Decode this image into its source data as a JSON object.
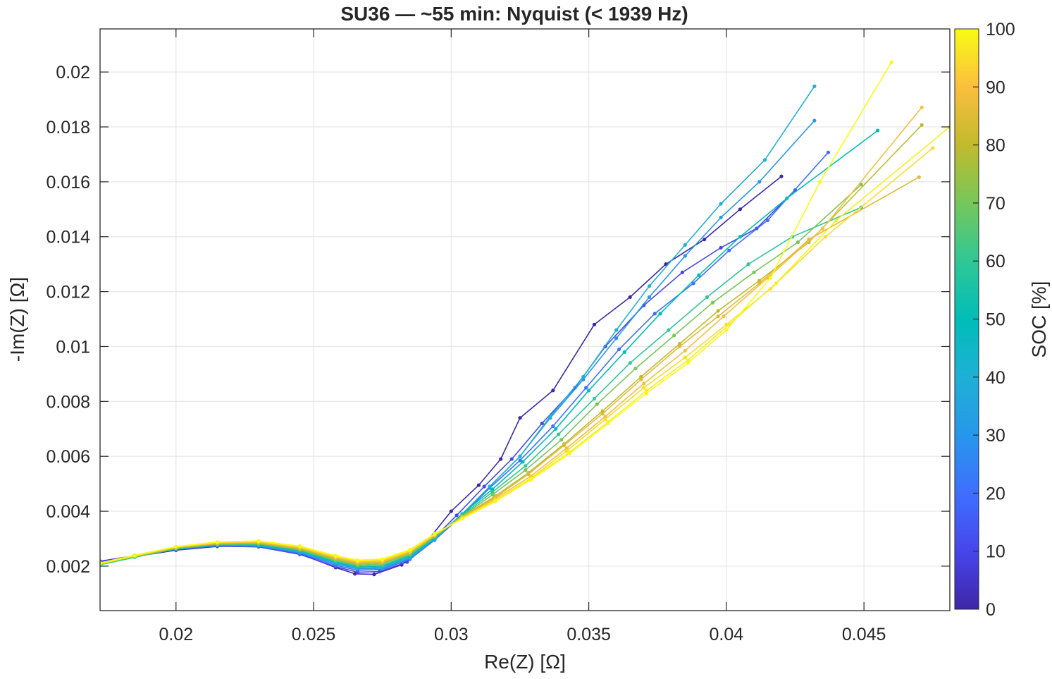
{
  "chart_data": {
    "type": "line",
    "title": "SU36 — ~55 min: Nyquist (< 1939 Hz)",
    "xlabel": "Re(Z) [Ω]",
    "ylabel": "-Im(Z) [Ω]",
    "xlim": [
      0.01724,
      0.04812
    ],
    "ylim": [
      0.00038,
      0.02157
    ],
    "xticks": [
      0.02,
      0.025,
      0.03,
      0.035,
      0.04,
      0.045
    ],
    "xtick_labels": [
      "0.02",
      "0.025",
      "0.03",
      "0.035",
      "0.04",
      "0.045"
    ],
    "yticks": [
      0.002,
      0.004,
      0.006,
      0.008,
      0.01,
      0.012,
      0.014,
      0.016,
      0.018,
      0.02
    ],
    "ytick_labels": [
      "0.002",
      "0.004",
      "0.006",
      "0.008",
      "0.01",
      "0.012",
      "0.014",
      "0.016",
      "0.018",
      "0.02"
    ],
    "grid": true,
    "marker": "dot",
    "colorbar": {
      "label": "SOC [%]",
      "min": 0,
      "max": 100,
      "ticks": [
        0,
        10,
        20,
        30,
        40,
        50,
        60,
        70,
        80,
        90,
        100
      ],
      "tick_labels": [
        "0",
        "10",
        "20",
        "30",
        "40",
        "50",
        "60",
        "70",
        "80",
        "90",
        "100"
      ],
      "colormap": "parula",
      "colormap_stops": [
        "#3e26a8",
        "#4746eb",
        "#3e6fff",
        "#2797eb",
        "#1fb0d5",
        "#00bdb8",
        "#30c796",
        "#76c75a",
        "#c2ba2d",
        "#fbbe3e",
        "#f9fb15"
      ]
    },
    "series": [
      {
        "name": "SOC 0",
        "soc": 0,
        "x": [
          0.01724,
          0.0185,
          0.02,
          0.0215,
          0.023,
          0.0245,
          0.0258,
          0.0265,
          0.0272,
          0.0282,
          0.029,
          0.03,
          0.031,
          0.0318,
          0.0325,
          0.0337,
          0.0352,
          0.0365,
          0.0378,
          0.0392,
          0.0405,
          0.042
        ],
        "y": [
          0.00215,
          0.00235,
          0.00258,
          0.00272,
          0.00272,
          0.00245,
          0.00195,
          0.00172,
          0.0017,
          0.00205,
          0.00275,
          0.004,
          0.00495,
          0.0059,
          0.0074,
          0.0084,
          0.0108,
          0.0118,
          0.013,
          0.0139,
          0.015,
          0.0162
        ]
      },
      {
        "name": "SOC 10",
        "soc": 10,
        "x": [
          0.01724,
          0.0185,
          0.02,
          0.0215,
          0.023,
          0.0245,
          0.0258,
          0.0266,
          0.0274,
          0.0284,
          0.0292,
          0.0302,
          0.0312,
          0.0322,
          0.0333,
          0.0345,
          0.0356,
          0.037,
          0.0384,
          0.0398,
          0.0411,
          0.0425
        ],
        "y": [
          0.00218,
          0.00238,
          0.0026,
          0.00273,
          0.0027,
          0.00243,
          0.00198,
          0.00178,
          0.0018,
          0.00215,
          0.00285,
          0.00385,
          0.0049,
          0.0059,
          0.0072,
          0.0085,
          0.01,
          0.0115,
          0.0127,
          0.0136,
          0.0143,
          0.0157
        ]
      },
      {
        "name": "SOC 20",
        "soc": 20,
        "x": [
          0.01724,
          0.0185,
          0.02,
          0.0215,
          0.023,
          0.0245,
          0.0258,
          0.0266,
          0.0275,
          0.0285,
          0.0294,
          0.0304,
          0.0314,
          0.0325,
          0.0337,
          0.0349,
          0.0361,
          0.0374,
          0.0388,
          0.0401,
          0.0415,
          0.0437
        ],
        "y": [
          0.00212,
          0.00236,
          0.00262,
          0.00275,
          0.00272,
          0.00247,
          0.00203,
          0.00185,
          0.00188,
          0.00225,
          0.00295,
          0.00385,
          0.00485,
          0.00585,
          0.0071,
          0.0085,
          0.0099,
          0.0112,
          0.0123,
          0.0135,
          0.0146,
          0.01707
        ]
      },
      {
        "name": "SOC 30",
        "soc": 30,
        "x": [
          0.01724,
          0.0185,
          0.02,
          0.0215,
          0.023,
          0.0245,
          0.0258,
          0.0266,
          0.0275,
          0.0285,
          0.0294,
          0.0304,
          0.0314,
          0.0325,
          0.0336,
          0.0348,
          0.036,
          0.0372,
          0.0385,
          0.0398,
          0.0412,
          0.0432
        ],
        "y": [
          0.0021,
          0.00234,
          0.00262,
          0.00276,
          0.00274,
          0.0025,
          0.00208,
          0.0019,
          0.00192,
          0.00228,
          0.00298,
          0.00388,
          0.0049,
          0.006,
          0.0074,
          0.0088,
          0.0103,
          0.0118,
          0.0133,
          0.0147,
          0.016,
          0.01823
        ]
      },
      {
        "name": "SOC 40",
        "soc": 40,
        "x": [
          0.01724,
          0.0185,
          0.02,
          0.0215,
          0.023,
          0.0245,
          0.0258,
          0.0266,
          0.0275,
          0.0285,
          0.0294,
          0.0304,
          0.0314,
          0.0325,
          0.0336,
          0.0348,
          0.036,
          0.0372,
          0.0385,
          0.0398,
          0.0414,
          0.0432
        ],
        "y": [
          0.0021,
          0.00235,
          0.00263,
          0.00277,
          0.00276,
          0.00253,
          0.00212,
          0.00194,
          0.00196,
          0.00232,
          0.003,
          0.0039,
          0.0049,
          0.006,
          0.00745,
          0.0089,
          0.0106,
          0.0122,
          0.0137,
          0.0152,
          0.0168,
          0.01948
        ]
      },
      {
        "name": "SOC 50",
        "soc": 50,
        "x": [
          0.01724,
          0.0185,
          0.02,
          0.0215,
          0.023,
          0.0245,
          0.0258,
          0.0266,
          0.0275,
          0.0285,
          0.0294,
          0.0304,
          0.0315,
          0.0326,
          0.0338,
          0.035,
          0.0363,
          0.0376,
          0.039,
          0.0405,
          0.0422,
          0.0455
        ],
        "y": [
          0.00208,
          0.00233,
          0.00263,
          0.00278,
          0.00278,
          0.00256,
          0.00215,
          0.00198,
          0.002,
          0.00236,
          0.00302,
          0.0039,
          0.0048,
          0.0058,
          0.007,
          0.0084,
          0.0098,
          0.0112,
          0.0126,
          0.014,
          0.0154,
          0.01787
        ]
      },
      {
        "name": "SOC 60",
        "soc": 60,
        "x": [
          0.01724,
          0.0185,
          0.02,
          0.0215,
          0.023,
          0.0245,
          0.0258,
          0.0266,
          0.0275,
          0.0285,
          0.0294,
          0.0304,
          0.0315,
          0.0327,
          0.0339,
          0.0352,
          0.0365,
          0.0379,
          0.0393,
          0.0408,
          0.0424,
          0.0449
        ],
        "y": [
          0.00205,
          0.00232,
          0.00264,
          0.00279,
          0.0028,
          0.00258,
          0.00218,
          0.002,
          0.00203,
          0.0024,
          0.00305,
          0.00385,
          0.0047,
          0.00565,
          0.0068,
          0.0081,
          0.0094,
          0.0106,
          0.0118,
          0.013,
          0.014,
          0.01507
        ]
      },
      {
        "name": "SOC 70",
        "soc": 70,
        "x": [
          0.01724,
          0.0185,
          0.02,
          0.0215,
          0.023,
          0.0245,
          0.0258,
          0.0266,
          0.0275,
          0.0285,
          0.0294,
          0.0304,
          0.0315,
          0.0327,
          0.034,
          0.0353,
          0.0367,
          0.0381,
          0.0395,
          0.041,
          0.0426,
          0.0449
        ],
        "y": [
          0.00208,
          0.00234,
          0.00265,
          0.0028,
          0.00282,
          0.0026,
          0.00222,
          0.00204,
          0.00208,
          0.00244,
          0.00308,
          0.00382,
          0.0046,
          0.0055,
          0.0066,
          0.0079,
          0.0092,
          0.0104,
          0.0116,
          0.0127,
          0.0138,
          0.0159
        ]
      },
      {
        "name": "SOC 80",
        "soc": 80,
        "x": [
          0.01724,
          0.0185,
          0.02,
          0.0215,
          0.023,
          0.0245,
          0.0258,
          0.0266,
          0.0275,
          0.0285,
          0.0294,
          0.0304,
          0.0316,
          0.0328,
          0.0341,
          0.0355,
          0.0369,
          0.0383,
          0.0397,
          0.0412,
          0.043,
          0.0471
        ],
        "y": [
          0.0021,
          0.00236,
          0.00267,
          0.00282,
          0.00284,
          0.00263,
          0.00226,
          0.00208,
          0.00212,
          0.00248,
          0.0031,
          0.0038,
          0.00455,
          0.0054,
          0.00645,
          0.00765,
          0.0089,
          0.0101,
          0.0113,
          0.0124,
          0.0138,
          0.01807
        ]
      },
      {
        "name": "SOC 85",
        "soc": 85,
        "x": [
          0.01724,
          0.0185,
          0.02,
          0.0215,
          0.023,
          0.0245,
          0.0258,
          0.0266,
          0.0275,
          0.0285,
          0.0294,
          0.0304,
          0.0316,
          0.0328,
          0.0341,
          0.0355,
          0.0369,
          0.0383,
          0.0397,
          0.0412,
          0.043,
          0.047
        ],
        "y": [
          0.00212,
          0.00238,
          0.00268,
          0.00284,
          0.00286,
          0.00265,
          0.00229,
          0.00211,
          0.00215,
          0.0025,
          0.00312,
          0.00378,
          0.0045,
          0.00535,
          0.0064,
          0.00755,
          0.0088,
          0.01,
          0.0111,
          0.0123,
          0.0139,
          0.01617
        ]
      },
      {
        "name": "SOC 90",
        "soc": 90,
        "x": [
          0.01724,
          0.0185,
          0.02,
          0.0215,
          0.023,
          0.0245,
          0.0258,
          0.0266,
          0.0275,
          0.0285,
          0.0294,
          0.0304,
          0.0316,
          0.0329,
          0.0342,
          0.0356,
          0.037,
          0.0385,
          0.0399,
          0.0415,
          0.0435,
          0.0471
        ],
        "y": [
          0.0021,
          0.00238,
          0.00269,
          0.00285,
          0.00288,
          0.00268,
          0.00232,
          0.00215,
          0.00218,
          0.00253,
          0.00314,
          0.00376,
          0.00445,
          0.00528,
          0.0063,
          0.00745,
          0.00865,
          0.00985,
          0.0111,
          0.0125,
          0.0143,
          0.01871
        ]
      },
      {
        "name": "SOC 95",
        "soc": 95,
        "x": [
          0.01724,
          0.0185,
          0.02,
          0.0215,
          0.023,
          0.0245,
          0.0258,
          0.0266,
          0.0275,
          0.0285,
          0.0294,
          0.0304,
          0.0316,
          0.0329,
          0.0342,
          0.0356,
          0.037,
          0.0385,
          0.04,
          0.0416,
          0.0436,
          0.0475
        ],
        "y": [
          0.00212,
          0.0024,
          0.0027,
          0.00287,
          0.0029,
          0.0027,
          0.00235,
          0.00218,
          0.00222,
          0.00256,
          0.00316,
          0.00375,
          0.0044,
          0.0052,
          0.0062,
          0.00735,
          0.0085,
          0.0096,
          0.0108,
          0.0121,
          0.014,
          0.01723
        ]
      },
      {
        "name": "SOC 100",
        "soc": 100,
        "x": [
          0.01724,
          0.0185,
          0.02,
          0.0215,
          0.023,
          0.0245,
          0.0258,
          0.0266,
          0.0275,
          0.0285,
          0.0294,
          0.0304,
          0.0316,
          0.0329,
          0.0343,
          0.0357,
          0.0371,
          0.0386,
          0.04,
          0.0416,
          0.0434,
          0.046
        ],
        "y": [
          0.00208,
          0.00238,
          0.00271,
          0.00288,
          0.00292,
          0.00273,
          0.00238,
          0.00222,
          0.00226,
          0.0026,
          0.00318,
          0.00372,
          0.00435,
          0.00515,
          0.0061,
          0.0072,
          0.0083,
          0.0094,
          0.0106,
          0.0125,
          0.016,
          0.02036
        ]
      },
      {
        "name": "SOC 98",
        "soc": 98,
        "x": [
          0.01724,
          0.0185,
          0.02,
          0.0215,
          0.023,
          0.0245,
          0.0258,
          0.0266,
          0.0275,
          0.0285,
          0.0294,
          0.0304,
          0.0316,
          0.0329,
          0.0343,
          0.0357,
          0.0371,
          0.0386,
          0.0401,
          0.0418,
          0.044,
          0.0481
        ],
        "y": [
          0.0021,
          0.00239,
          0.00271,
          0.00288,
          0.00291,
          0.00272,
          0.00237,
          0.0022,
          0.00224,
          0.00258,
          0.00317,
          0.00374,
          0.00438,
          0.00518,
          0.00615,
          0.00725,
          0.0084,
          0.0095,
          0.0108,
          0.0123,
          0.0146,
          0.01799
        ]
      }
    ]
  }
}
